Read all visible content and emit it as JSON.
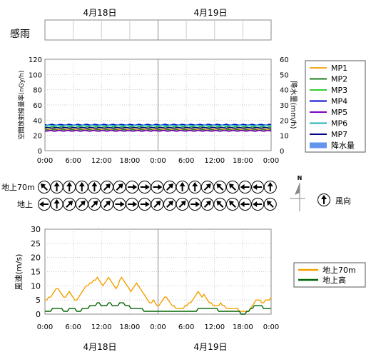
{
  "dates": [
    "4月18日",
    "4月19日"
  ],
  "rain_label": "感雨",
  "panel1": {
    "ylabel_left": "空間放射線量率(nGy/h)",
    "ylabel_right": "降水量(mm/h)",
    "y_ticks_left": [
      "120",
      "100",
      "80",
      "60",
      "40",
      "20",
      "0"
    ],
    "y_ticks_right": [
      "60",
      "50",
      "40",
      "30",
      "20",
      "10",
      "0"
    ]
  },
  "x_ticks": [
    "0:00",
    "6:00",
    "12:00",
    "18:00",
    "0:00",
    "6:00",
    "12:00",
    "18:00",
    "0:00"
  ],
  "wind_dir": {
    "row_labels": [
      "地上70m",
      "地上"
    ],
    "legend_label": "風向",
    "north_label": "N",
    "rows": [
      [
        315,
        0,
        0,
        0,
        0,
        45,
        45,
        90,
        90,
        90,
        45,
        0,
        0,
        45,
        315,
        315,
        270,
        270,
        0
      ],
      [
        270,
        0,
        45,
        45,
        45,
        45,
        90,
        90,
        90,
        45,
        45,
        45,
        90,
        45,
        315,
        315,
        270,
        270,
        315
      ]
    ]
  },
  "panel2": {
    "ylabel": "風速(m/s)",
    "y_ticks": [
      "30",
      "25",
      "20",
      "15",
      "10",
      "5",
      "0"
    ]
  },
  "colors": {
    "MP1": "#F5A623",
    "MP2": "#1E7B1E",
    "MP3": "#33CC33",
    "MP4": "#0000CC",
    "MP5": "#8000C0",
    "MP6": "#20B0B0",
    "MP7": "#000080",
    "rain": "#6495ED",
    "wind70": "#F5A000",
    "wind_ground": "#006400"
  },
  "chart_data": [
    {
      "type": "line",
      "title": "",
      "ylabel": "空間放射線量率(nGy/h)",
      "y2label": "降水量(mm/h)",
      "ylim": [
        0,
        120
      ],
      "y2lim": [
        0,
        60
      ],
      "x_range_hours": [
        0,
        48
      ],
      "legend_position": "right",
      "series": [
        {
          "name": "MP1",
          "values": [
            28,
            28,
            28,
            28,
            28,
            28,
            28,
            28,
            28
          ]
        },
        {
          "name": "MP2",
          "values": [
            27,
            27,
            27,
            27,
            27,
            27,
            27,
            27,
            27
          ]
        },
        {
          "name": "MP3",
          "values": [
            31,
            31,
            31,
            31,
            31,
            31,
            31,
            31,
            31
          ]
        },
        {
          "name": "MP4",
          "values": [
            34,
            34,
            34,
            34,
            34,
            34,
            34,
            34,
            34
          ]
        },
        {
          "name": "MP5",
          "values": [
            26,
            26,
            26,
            26,
            26,
            26,
            26,
            26,
            26
          ]
        },
        {
          "name": "MP6",
          "values": [
            33,
            33,
            33,
            33,
            33,
            33,
            33,
            33,
            33
          ]
        },
        {
          "name": "MP7",
          "values": [
            30,
            30,
            30,
            30,
            30,
            30,
            30,
            30,
            30
          ]
        },
        {
          "name": "降水量",
          "values": [
            0,
            0,
            0,
            0,
            0,
            0,
            0,
            0,
            0
          ]
        }
      ]
    },
    {
      "type": "line",
      "title": "",
      "ylabel": "風速(m/s)",
      "ylim": [
        0,
        30
      ],
      "x_range_hours": [
        0,
        48
      ],
      "legend_position": "right",
      "series": [
        {
          "name": "地上70m",
          "values": [
            5,
            5,
            6,
            6,
            7,
            8,
            9,
            9,
            8,
            7,
            6,
            6,
            7,
            8,
            7,
            6,
            5,
            5,
            6,
            7,
            8,
            9,
            10,
            10,
            11,
            11,
            12,
            12,
            13,
            12,
            11,
            10,
            11,
            12,
            13,
            12,
            11,
            10,
            9,
            10,
            12,
            13,
            12,
            11,
            10,
            9,
            8,
            9,
            10,
            11,
            10,
            9,
            8,
            7,
            6,
            5,
            4,
            4,
            5,
            4,
            3,
            3,
            4,
            5,
            6,
            6,
            5,
            4,
            3,
            3,
            2,
            2,
            2,
            2,
            2,
            3,
            3,
            4,
            4,
            5,
            6,
            7,
            8,
            7,
            6,
            7,
            6,
            5,
            4,
            4,
            3,
            3,
            3,
            3,
            4,
            3,
            3,
            2,
            2,
            2,
            2,
            2,
            2,
            2,
            1,
            1,
            1,
            1,
            1,
            1,
            2,
            3,
            4,
            5,
            5,
            5,
            4,
            4,
            5,
            5,
            5,
            6
          ]
        },
        {
          "name": "地上高",
          "values": [
            1,
            1,
            1,
            1,
            2,
            2,
            2,
            2,
            2,
            2,
            1,
            1,
            1,
            2,
            2,
            2,
            2,
            1,
            1,
            1,
            2,
            2,
            2,
            2,
            3,
            3,
            3,
            3,
            4,
            4,
            3,
            3,
            3,
            3,
            4,
            4,
            3,
            3,
            3,
            3,
            4,
            4,
            4,
            3,
            3,
            3,
            2,
            2,
            2,
            2,
            2,
            2,
            2,
            1,
            1,
            1,
            1,
            1,
            1,
            1,
            1,
            1,
            1,
            1,
            1,
            1,
            1,
            1,
            1,
            1,
            1,
            1,
            1,
            1,
            1,
            1,
            1,
            1,
            1,
            1,
            1,
            1,
            2,
            2,
            2,
            2,
            2,
            2,
            2,
            2,
            2,
            2,
            2,
            1,
            1,
            1,
            1,
            1,
            1,
            1,
            1,
            1,
            1,
            1,
            1,
            0,
            0,
            0,
            1,
            1,
            2,
            2,
            3,
            3,
            3,
            3,
            3,
            2,
            2,
            2,
            2,
            2
          ]
        }
      ]
    }
  ],
  "legend1": [
    "MP1",
    "MP2",
    "MP3",
    "MP4",
    "MP5",
    "MP6",
    "MP7",
    "降水量"
  ],
  "legend2": [
    "地上70m",
    "地上高"
  ]
}
